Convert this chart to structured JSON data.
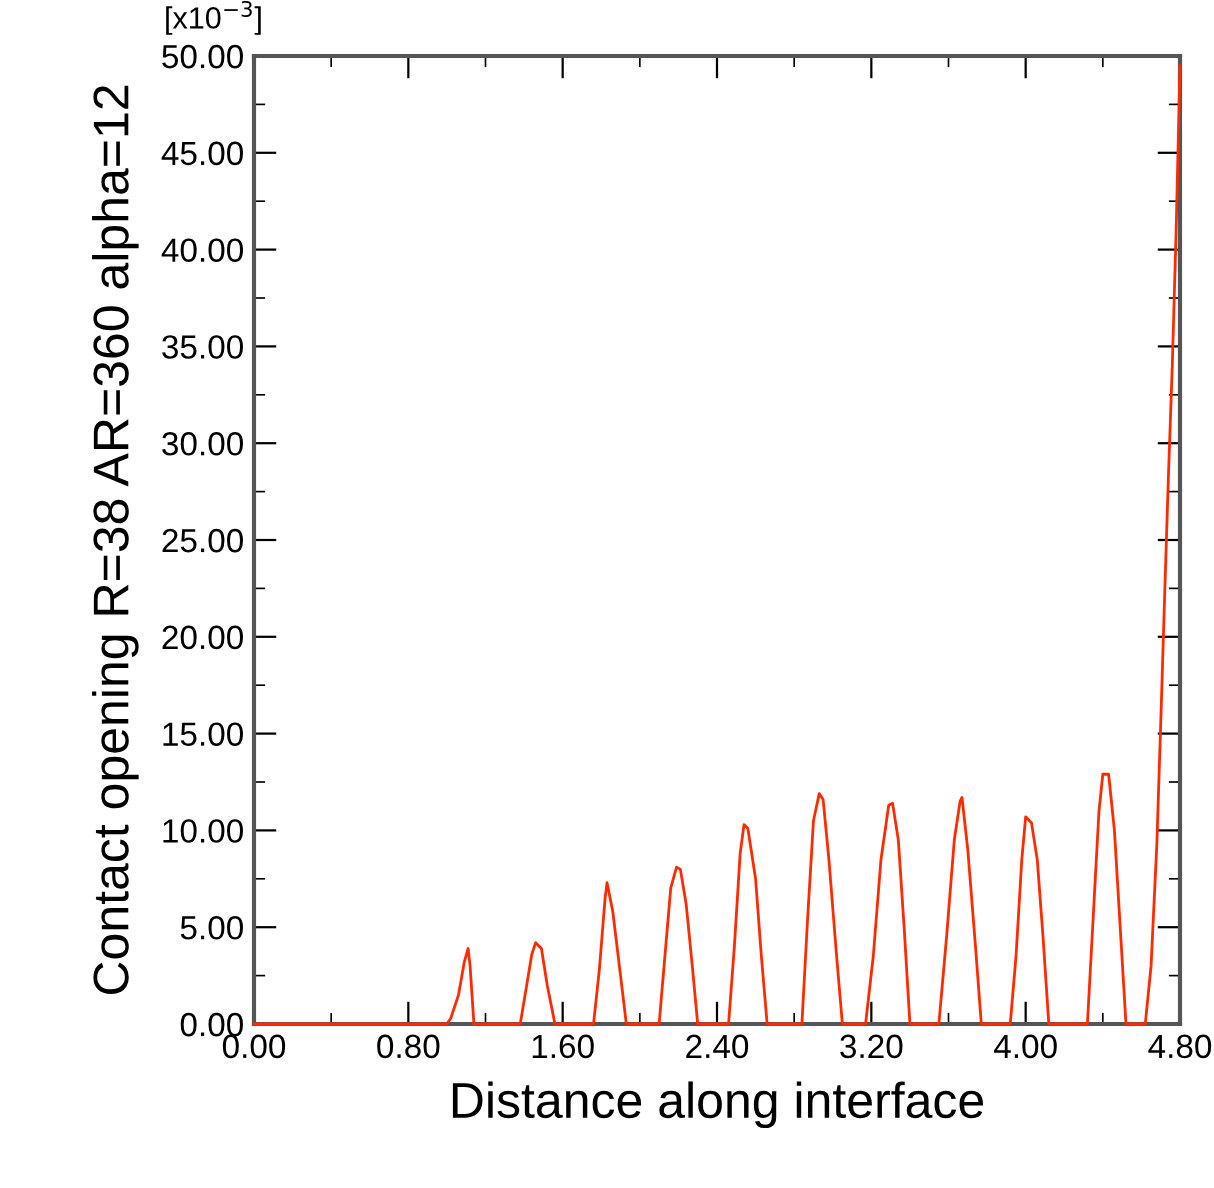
{
  "chart_data": {
    "type": "line",
    "xlabel": "Distance along interface",
    "ylabel": "Contact opening R=38 AR=360 alpha=12",
    "annotations": [
      "[x10$^{−3}$]"
    ],
    "series": [
      {
        "color": "#ff2a00",
        "x": [
          0.0,
          1.0,
          1.02,
          1.06,
          1.09,
          1.11,
          1.12,
          1.14,
          1.38,
          1.41,
          1.44,
          1.46,
          1.49,
          1.52,
          1.56,
          1.76,
          1.79,
          1.82,
          1.83,
          1.86,
          1.9,
          1.93,
          2.1,
          2.13,
          2.16,
          2.19,
          2.21,
          2.24,
          2.27,
          2.3,
          2.46,
          2.49,
          2.52,
          2.54,
          2.56,
          2.6,
          2.63,
          2.66,
          2.84,
          2.87,
          2.9,
          2.93,
          2.95,
          2.98,
          3.02,
          3.05,
          3.17,
          3.21,
          3.25,
          3.29,
          3.31,
          3.34,
          3.37,
          3.4,
          3.55,
          3.59,
          3.63,
          3.66,
          3.67,
          3.7,
          3.74,
          3.77,
          3.92,
          3.95,
          3.98,
          4.0,
          4.03,
          4.06,
          4.09,
          4.12,
          4.32,
          4.35,
          4.38,
          4.4,
          4.43,
          4.46,
          4.49,
          4.52,
          4.62,
          4.65,
          4.68,
          4.7,
          4.72,
          4.74,
          4.76,
          4.78,
          4.8
        ],
        "values": [
          0,
          0,
          0.3,
          1.5,
          3.2,
          3.9,
          3.0,
          0,
          0,
          1.8,
          3.6,
          4.2,
          3.9,
          2.0,
          0,
          0,
          2.8,
          6.5,
          7.3,
          5.8,
          2.5,
          0,
          0,
          3.5,
          7.0,
          8.1,
          8.0,
          6.2,
          3.2,
          0,
          0,
          4.0,
          8.8,
          10.3,
          10.1,
          7.5,
          3.5,
          0,
          0,
          5.5,
          10.5,
          11.9,
          11.6,
          8.5,
          3.5,
          0,
          0,
          3.5,
          8.5,
          11.3,
          11.4,
          9.5,
          5.0,
          0,
          0,
          4.5,
          9.5,
          11.5,
          11.7,
          9.0,
          4.0,
          0,
          0,
          3.5,
          8.5,
          10.7,
          10.4,
          8.5,
          4.5,
          0,
          0,
          5.5,
          11.0,
          12.9,
          12.9,
          10.0,
          5.0,
          0,
          0,
          3.0,
          9.3,
          15.5,
          22.0,
          28.3,
          34.0,
          41.0,
          49.5
        ]
      }
    ],
    "xlim": [
      0,
      4.8
    ],
    "ylim": [
      0,
      50
    ],
    "xticks": [
      {
        "value": 0,
        "label": "0.00"
      },
      {
        "value": 0.4,
        "label": null
      },
      {
        "value": 0.8,
        "label": "0.80"
      },
      {
        "value": 1.2,
        "label": null
      },
      {
        "value": 1.6,
        "label": "1.60"
      },
      {
        "value": 2.0,
        "label": null
      },
      {
        "value": 2.4,
        "label": "2.40"
      },
      {
        "value": 2.8,
        "label": null
      },
      {
        "value": 3.2,
        "label": "3.20"
      },
      {
        "value": 3.6,
        "label": null
      },
      {
        "value": 4.0,
        "label": "4.00"
      },
      {
        "value": 4.4,
        "label": null
      },
      {
        "value": 4.8,
        "label": "4.80"
      }
    ],
    "yticks": [
      {
        "value": 0,
        "label": "0.00"
      },
      {
        "value": 2.5,
        "label": null
      },
      {
        "value": 5,
        "label": "5.00"
      },
      {
        "value": 7.5,
        "label": null
      },
      {
        "value": 10,
        "label": "10.00"
      },
      {
        "value": 12.5,
        "label": null
      },
      {
        "value": 15,
        "label": "15.00"
      },
      {
        "value": 17.5,
        "label": null
      },
      {
        "value": 20,
        "label": "20.00"
      },
      {
        "value": 22.5,
        "label": null
      },
      {
        "value": 25,
        "label": "25.00"
      },
      {
        "value": 27.5,
        "label": null
      },
      {
        "value": 30,
        "label": "30.00"
      },
      {
        "value": 32.5,
        "label": null
      },
      {
        "value": 35,
        "label": "35.00"
      },
      {
        "value": 37.5,
        "label": null
      },
      {
        "value": 40,
        "label": "40.00"
      },
      {
        "value": 42.5,
        "label": null
      },
      {
        "value": 45,
        "label": "45.00"
      },
      {
        "value": 47.5,
        "label": null
      },
      {
        "value": 50,
        "label": "50.00"
      }
    ],
    "grid": false,
    "legend": false
  }
}
